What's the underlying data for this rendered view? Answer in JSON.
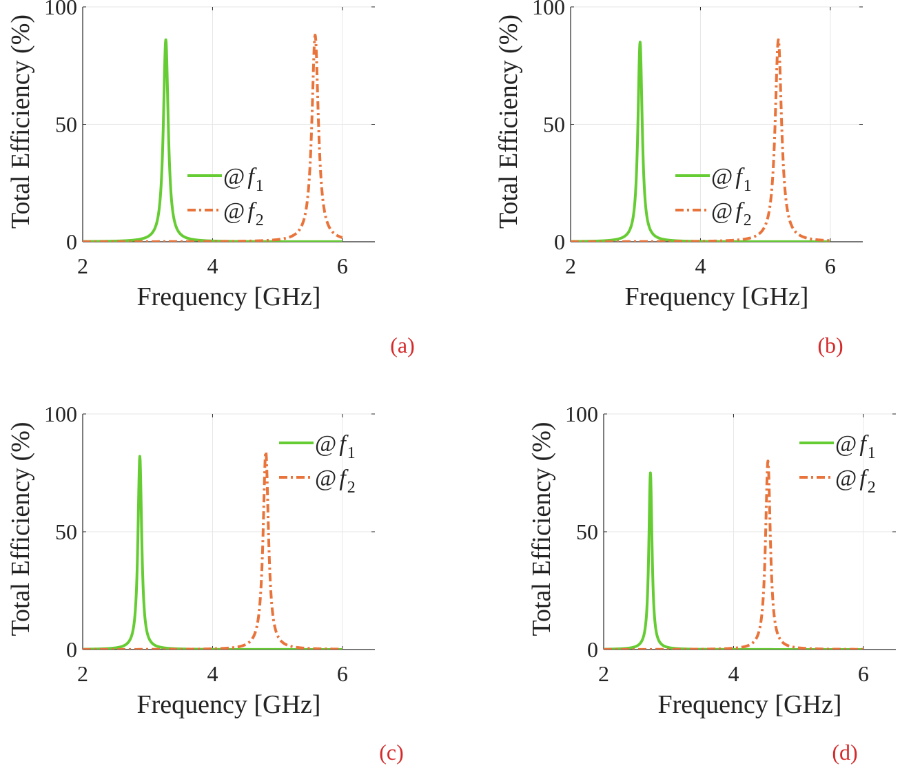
{
  "figure": {
    "colors": {
      "f1": "#66cc33",
      "f2": "#e8743b",
      "panel_label": "#d42a2a",
      "axis": "#262626",
      "grid": "#e6e6e6"
    }
  },
  "chart_data": [
    {
      "type": "line",
      "panel_label": "(a)",
      "xlabel": "Frequency [GHz]",
      "ylabel": "Total Efficiency (%)",
      "xlim": [
        2,
        6.5
      ],
      "ylim": [
        0,
        100
      ],
      "xticks": [
        2,
        4,
        6
      ],
      "yticks": [
        0,
        50,
        100
      ],
      "grid": true,
      "legend_position": "middle-right",
      "series": [
        {
          "name": "@f1",
          "legend_main": "@",
          "legend_var": "f",
          "legend_sub": "1",
          "style": "solid",
          "color": "#66cc33",
          "peak_x": 3.28,
          "peak_y": 86,
          "half_width": 0.045,
          "x_range": [
            2,
            6
          ]
        },
        {
          "name": "@f2",
          "legend_main": "@",
          "legend_var": "f",
          "legend_sub": "2",
          "style": "dashdot",
          "color": "#e8743b",
          "peak_x": 5.58,
          "peak_y": 88,
          "half_width": 0.06,
          "x_range": [
            2,
            6
          ]
        }
      ]
    },
    {
      "type": "line",
      "panel_label": "(b)",
      "xlabel": "Frequency [GHz]",
      "ylabel": "Total Efficiency (%)",
      "xlim": [
        2,
        6.5
      ],
      "ylim": [
        0,
        100
      ],
      "xticks": [
        2,
        4,
        6
      ],
      "yticks": [
        0,
        50,
        100
      ],
      "grid": true,
      "legend_position": "middle-right",
      "series": [
        {
          "name": "@f1",
          "legend_main": "@",
          "legend_var": "f",
          "legend_sub": "1",
          "style": "solid",
          "color": "#66cc33",
          "peak_x": 3.07,
          "peak_y": 85,
          "half_width": 0.04,
          "x_range": [
            2,
            6
          ]
        },
        {
          "name": "@f2",
          "legend_main": "@",
          "legend_var": "f",
          "legend_sub": "2",
          "style": "dashdot",
          "color": "#e8743b",
          "peak_x": 5.2,
          "peak_y": 86,
          "half_width": 0.06,
          "x_range": [
            2,
            6
          ]
        }
      ]
    },
    {
      "type": "line",
      "panel_label": "(c)",
      "xlabel": "Frequency [GHz]",
      "ylabel": "Total Efficiency (%)",
      "xlim": [
        2,
        6.5
      ],
      "ylim": [
        0,
        100
      ],
      "xticks": [
        2,
        4,
        6
      ],
      "yticks": [
        0,
        50,
        100
      ],
      "grid": true,
      "legend_position": "top-right",
      "series": [
        {
          "name": "@f1",
          "legend_main": "@",
          "legend_var": "f",
          "legend_sub": "1",
          "style": "solid",
          "color": "#66cc33",
          "peak_x": 2.88,
          "peak_y": 82,
          "half_width": 0.035,
          "x_range": [
            2,
            6
          ]
        },
        {
          "name": "@f2",
          "legend_main": "@",
          "legend_var": "f",
          "legend_sub": "2",
          "style": "dashdot",
          "color": "#e8743b",
          "peak_x": 4.82,
          "peak_y": 84,
          "half_width": 0.05,
          "x_range": [
            2,
            6
          ]
        }
      ]
    },
    {
      "type": "line",
      "panel_label": "(d)",
      "xlabel": "Frequency [GHz]",
      "ylabel": "Total Efficiency (%)",
      "xlim": [
        2,
        6.5
      ],
      "ylim": [
        0,
        100
      ],
      "xticks": [
        2,
        4,
        6
      ],
      "yticks": [
        0,
        50,
        100
      ],
      "grid": true,
      "legend_position": "top-right",
      "series": [
        {
          "name": "@f1",
          "legend_main": "@",
          "legend_var": "f",
          "legend_sub": "1",
          "style": "solid",
          "color": "#66cc33",
          "peak_x": 2.72,
          "peak_y": 75,
          "half_width": 0.03,
          "x_range": [
            2,
            6
          ]
        },
        {
          "name": "@f2",
          "legend_main": "@",
          "legend_var": "f",
          "legend_sub": "2",
          "style": "dashdot",
          "color": "#e8743b",
          "peak_x": 4.53,
          "peak_y": 80,
          "half_width": 0.045,
          "x_range": [
            2,
            6
          ]
        }
      ]
    }
  ]
}
